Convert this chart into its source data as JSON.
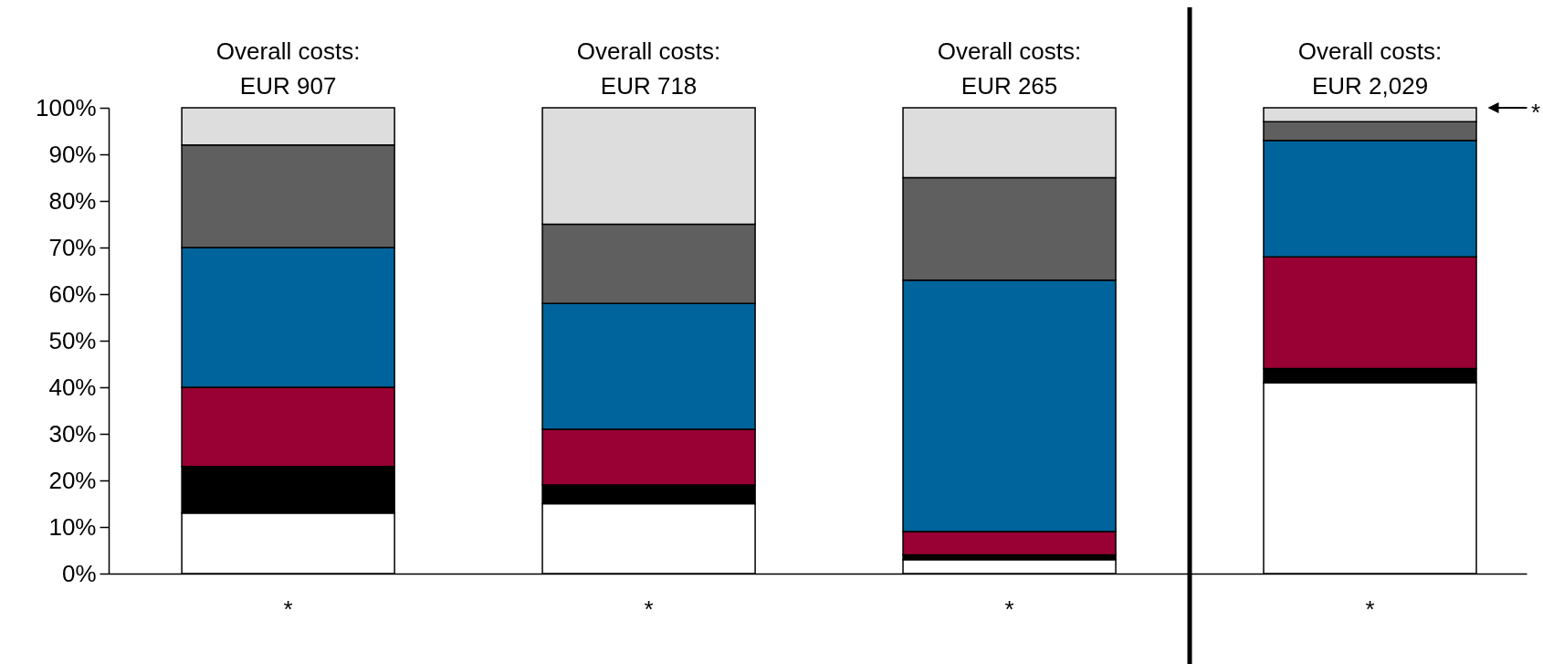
{
  "chart_data": {
    "type": "bar",
    "stacked": true,
    "categories": [
      "*",
      "*",
      "*",
      "*"
    ],
    "series": [
      {
        "color": "#ffffff",
        "values": [
          13,
          15,
          3,
          41
        ]
      },
      {
        "color": "#000000",
        "values": [
          10,
          4,
          1,
          3
        ]
      },
      {
        "color": "#990033",
        "values": [
          17,
          12,
          5,
          24
        ]
      },
      {
        "color": "#00649c",
        "values": [
          30,
          27,
          54,
          25
        ]
      },
      {
        "color": "#5f5f5f",
        "values": [
          22,
          17,
          22,
          4
        ]
      },
      {
        "color": "#dddddd",
        "values": [
          8,
          25,
          15,
          3
        ]
      }
    ],
    "totals": [
      "Overall costs:\nEUR 907",
      "Overall costs:\nEUR 718",
      "Overall costs:\nEUR 265",
      "Overall costs:\nEUR 2,029"
    ],
    "ylim": [
      0,
      100
    ],
    "yticks": [
      {
        "value": 0,
        "label": "0%"
      },
      {
        "value": 10,
        "label": "10%"
      },
      {
        "value": 20,
        "label": "20%"
      },
      {
        "value": 30,
        "label": "30%"
      },
      {
        "value": 40,
        "label": "40%"
      },
      {
        "value": 50,
        "label": "50%"
      },
      {
        "value": 60,
        "label": "60%"
      },
      {
        "value": 70,
        "label": "70%"
      },
      {
        "value": 80,
        "label": "80%"
      },
      {
        "value": 90,
        "label": "90%"
      },
      {
        "value": 100,
        "label": "100%"
      }
    ],
    "annotations": [
      "*"
    ]
  }
}
